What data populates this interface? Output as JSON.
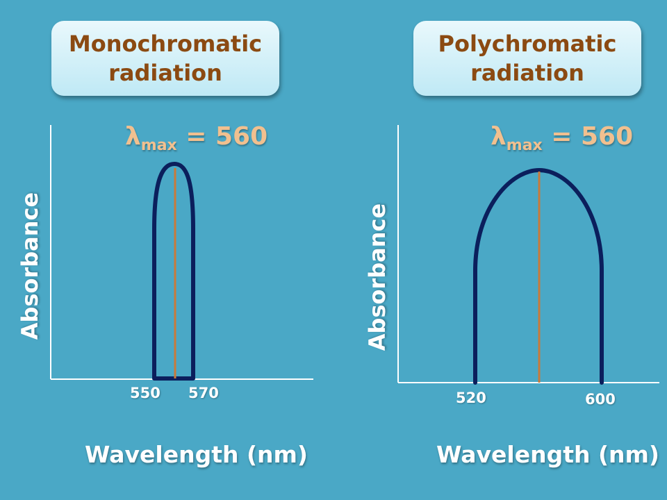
{
  "panels": {
    "left": {
      "title_line1": "Monochromatic",
      "title_line2": "radiation",
      "lambda_symbol": "λ",
      "lambda_subscript": "max",
      "lambda_value": " = 560",
      "ylabel": "Absorbance",
      "xlabel": "Wavelength (nm)",
      "ticks": [
        "550",
        "570"
      ]
    },
    "right": {
      "title_line1": "Polychromatic",
      "title_line2": "radiation",
      "lambda_symbol": "λ",
      "lambda_subscript": "max",
      "lambda_value": " = 560",
      "ylabel": "Absorbance",
      "xlabel": "Wavelength (nm)",
      "ticks": [
        "520",
        "600"
      ]
    }
  },
  "colors": {
    "background": "#4aa8c6",
    "curve": "#0b1f5c",
    "peak_line": "#c97a3a",
    "axis": "#ffffff",
    "title_text": "#8b4a12",
    "lambda_text": "#f1c08f"
  }
}
